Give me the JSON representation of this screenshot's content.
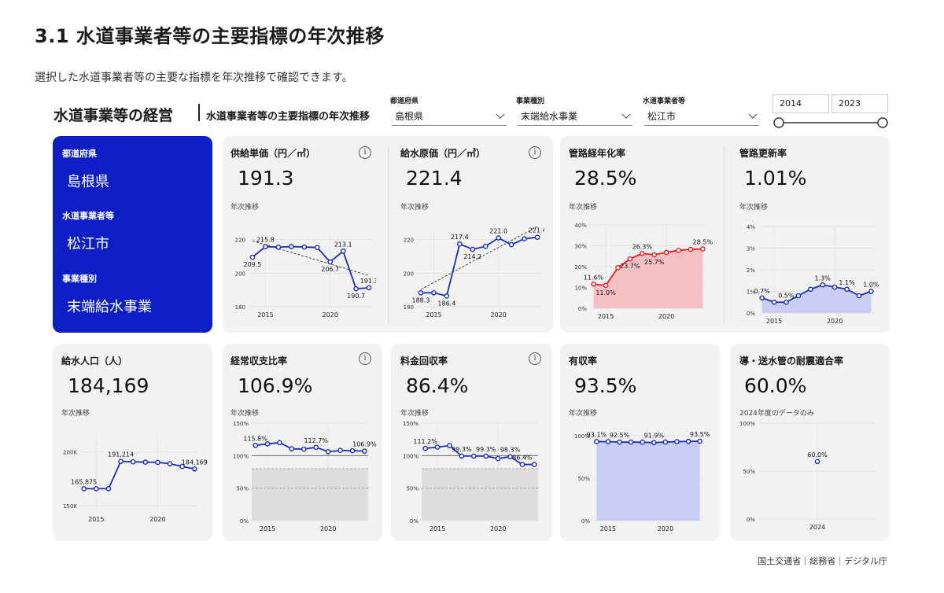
{
  "page": {
    "title": "3.1 水道事業者等の主要指標の年次推移",
    "description": "選択した水道事業者等の主要な指標を年次推移で確認できます。"
  },
  "dashboard": {
    "title": "水道事業等の経営",
    "subtitle": "水道事業者等の主要指標の年次推移"
  },
  "filters": {
    "prefecture": {
      "label": "都道府県",
      "value": "島根県"
    },
    "business_type": {
      "label": "事業種別",
      "value": "末端給水事業"
    },
    "operator": {
      "label": "水道事業者等",
      "value": "松江市"
    },
    "year_from": "2014",
    "year_to": "2023"
  },
  "summary": {
    "prefecture_label": "都道府県",
    "prefecture_value": "島根県",
    "operator_label": "水道事業者等",
    "operator_value": "松江市",
    "type_label": "事業種別",
    "type_value": "末端給水事業"
  },
  "cards": {
    "supply_price": {
      "title": "供給単価（円／㎥）",
      "kpi": "191.3",
      "trend": "年次推移"
    },
    "water_cost": {
      "title": "給水原価（円／㎥）",
      "kpi": "221.4",
      "trend": "年次推移"
    },
    "aging": {
      "title": "管路経年化率",
      "kpi": "28.5%",
      "trend": "年次推移"
    },
    "renewal": {
      "title": "管路更新率",
      "kpi": "1.01%",
      "trend": "年次推移"
    },
    "population": {
      "title": "給水人口（人）",
      "kpi": "184,169",
      "trend": "年次推移"
    },
    "ordinary": {
      "title": "経常収支比率",
      "kpi": "106.9%",
      "trend": "年次推移"
    },
    "fee_recovery": {
      "title": "料金回収率",
      "kpi": "86.4%",
      "trend": "年次推移"
    },
    "revenue_rate": {
      "title": "有収率",
      "kpi": "93.5%",
      "trend": "年次推移"
    },
    "quake": {
      "title": "導・送水管の耐震適合率",
      "kpi": "60.0%",
      "trend": "2024年度のデータのみ"
    }
  },
  "footer": "国土交通省｜総務省｜デジタル庁",
  "colors": {
    "blue": "#1a2db8",
    "red": "#e02020",
    "card": "#f2f2f2",
    "brand": "#0d1fc4"
  },
  "chart_data": [
    {
      "id": "supply_price",
      "type": "line",
      "x": [
        2014,
        2015,
        2016,
        2017,
        2018,
        2019,
        2020,
        2021,
        2022,
        2023
      ],
      "values": [
        209.5,
        215.8,
        215.5,
        215.8,
        215.6,
        215.3,
        206.7,
        213.1,
        190.7,
        191.3
      ],
      "ylim": [
        180,
        225
      ],
      "yticks": [
        180,
        200,
        220
      ],
      "xticks": [
        2015,
        2020
      ],
      "labels": {
        "0": "209.5",
        "1": "215.8",
        "6": "206.7",
        "7": "213.1",
        "8": "190.7",
        "9": "191.3"
      },
      "trendline": true
    },
    {
      "id": "water_cost",
      "type": "line",
      "x": [
        2014,
        2015,
        2016,
        2017,
        2018,
        2019,
        2020,
        2021,
        2022,
        2023
      ],
      "values": [
        188.3,
        188.3,
        186.4,
        217.4,
        214.2,
        216.0,
        221.0,
        217.0,
        220.5,
        221.4
      ],
      "ylim": [
        180,
        225
      ],
      "yticks": [
        180,
        200,
        220
      ],
      "xticks": [
        2015,
        2020
      ],
      "labels": {
        "0": "188.3",
        "2": "186.4",
        "3": "217.4",
        "4": "214.2",
        "6": "221.0",
        "9": "221.4"
      },
      "trendline": true
    },
    {
      "id": "aging",
      "type": "area",
      "x": [
        2014,
        2015,
        2016,
        2017,
        2018,
        2019,
        2020,
        2021,
        2022,
        2023
      ],
      "values": [
        11.6,
        11.0,
        19.5,
        23.7,
        26.3,
        25.7,
        26.8,
        27.8,
        28.3,
        28.5
      ],
      "ylim": [
        0,
        40
      ],
      "yticks": [
        0,
        10,
        20,
        30,
        40
      ],
      "xticks": [
        2015,
        2020
      ],
      "labels": {
        "0": "11.6%",
        "1": "11.0%",
        "3": "23.7%",
        "4": "26.3%",
        "5": "25.7%",
        "9": "28.5%"
      },
      "suffix": "%"
    },
    {
      "id": "renewal",
      "type": "area",
      "x": [
        2014,
        2015,
        2016,
        2017,
        2018,
        2019,
        2020,
        2021,
        2022,
        2023
      ],
      "values": [
        0.7,
        0.5,
        0.5,
        0.8,
        1.1,
        1.3,
        1.2,
        1.1,
        0.8,
        1.0
      ],
      "ylim": [
        0,
        4
      ],
      "yticks": [
        0,
        1,
        2,
        3,
        4
      ],
      "xticks": [
        2015,
        2020
      ],
      "labels": {
        "0": "0.7%",
        "2": "0.5%",
        "5": "1.3%",
        "7": "1.1%",
        "9": "1.0%"
      },
      "suffix": "%"
    },
    {
      "id": "population",
      "type": "line",
      "x": [
        2014,
        2015,
        2016,
        2017,
        2018,
        2019,
        2020,
        2021,
        2022,
        2023
      ],
      "values": [
        165875,
        165875,
        165875,
        191214,
        190800,
        190500,
        190300,
        189000,
        186500,
        184169
      ],
      "ylim": [
        145000,
        215000
      ],
      "yticks": [
        150000,
        200000
      ],
      "ytick_labels": [
        "150K",
        "200K"
      ],
      "xticks": [
        2015,
        2020
      ],
      "labels": {
        "0": "165,875",
        "3": "191,214",
        "9": "184,169"
      }
    },
    {
      "id": "ordinary",
      "type": "line",
      "x": [
        2014,
        2015,
        2016,
        2017,
        2018,
        2019,
        2020,
        2021,
        2022,
        2023
      ],
      "values": [
        115.8,
        118.0,
        120.0,
        110.5,
        110.0,
        112.7,
        106.0,
        108.0,
        107.5,
        106.9
      ],
      "ylim": [
        0,
        150
      ],
      "yticks": [
        0,
        50,
        100,
        150
      ],
      "ytick_labels": [
        "0%",
        "50%",
        "100%",
        "150%"
      ],
      "xticks": [
        2015,
        2020
      ],
      "labels": {
        "0": "115.8%",
        "5": "112.7%",
        "9": "106.9%"
      },
      "shaded_below": 80
    },
    {
      "id": "fee_recovery",
      "type": "line",
      "x": [
        2014,
        2015,
        2016,
        2017,
        2018,
        2019,
        2020,
        2021,
        2022,
        2023
      ],
      "values": [
        111.2,
        113.0,
        115.5,
        99.3,
        99.3,
        99.3,
        95.5,
        98.3,
        86.4,
        86.4
      ],
      "ylim": [
        0,
        150
      ],
      "yticks": [
        0,
        50,
        100,
        150
      ],
      "ytick_labels": [
        "0%",
        "50%",
        "100%",
        "150%"
      ],
      "xticks": [
        2015,
        2020
      ],
      "labels": {
        "0": "111.2%",
        "3": "99.3%",
        "5": "99.3%",
        "7": "98.3%",
        "8": "86.4%"
      },
      "shaded_below": 80
    },
    {
      "id": "revenue_rate",
      "type": "area",
      "x": [
        2014,
        2015,
        2016,
        2017,
        2018,
        2019,
        2020,
        2021,
        2022,
        2023
      ],
      "values": [
        93.1,
        93.0,
        92.5,
        92.4,
        92.3,
        91.9,
        92.5,
        93.0,
        93.3,
        93.5
      ],
      "ylim": [
        0,
        100
      ],
      "yticks": [
        0,
        50,
        100
      ],
      "ytick_labels": [
        "0%",
        "50%",
        "100%"
      ],
      "xticks": [
        2015,
        2020
      ],
      "labels": {
        "0": "93.1%",
        "2": "92.5%",
        "5": "91.9%",
        "9": "93.5%"
      }
    },
    {
      "id": "quake",
      "type": "scatter",
      "x": [
        2024
      ],
      "values": [
        60.0
      ],
      "ylim": [
        0,
        100
      ],
      "yticks": [
        0,
        50,
        100
      ],
      "ytick_labels": [
        "0%",
        "50%",
        "100%"
      ],
      "xticks": [
        2024
      ],
      "labels": {
        "0": "60.0%"
      }
    }
  ]
}
